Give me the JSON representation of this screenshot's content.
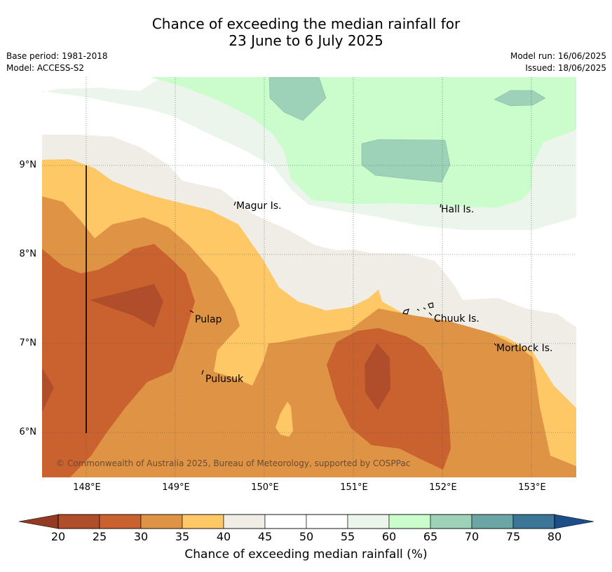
{
  "title_line1": "Chance of exceeding the median rainfall for",
  "title_line2": "23 June to 6 July 2025",
  "base_period": "Base period: 1981-2018",
  "model": "Model: ACCESS-S2",
  "model_run": "Model run: 16/06/2025",
  "issued": "Issued: 18/06/2025",
  "copyright": "© Commonwealth of Australia 2025, Bureau of Meteorology, supported by COSPPac",
  "x_ticks": [
    "148°E",
    "149°E",
    "150°E",
    "151°E",
    "152°E",
    "153°E"
  ],
  "y_ticks": [
    "9°N",
    "8°N",
    "7°N",
    "6°N"
  ],
  "places": [
    {
      "name": "Magur Is."
    },
    {
      "name": "Hall Is."
    },
    {
      "name": "Pulap"
    },
    {
      "name": "Chuuk Is."
    },
    {
      "name": "Mortlock Is."
    },
    {
      "name": "Pulusuk"
    }
  ],
  "colorbar": {
    "label": "Chance of exceeding median rainfall (%)",
    "ticks": [
      "20",
      "25",
      "30",
      "35",
      "40",
      "45",
      "50",
      "55",
      "60",
      "65",
      "70",
      "75",
      "80"
    ],
    "colors": [
      "#b04e2b",
      "#c9622f",
      "#df9445",
      "#fdc865",
      "#f0ece6",
      "#ffffff",
      "#ffffff",
      "#ebf5eb",
      "#cbfccc",
      "#9dd1b8",
      "#6ba5a4",
      "#3b7598"
    ],
    "under_color": "#943a22",
    "over_color": "#1c4f8a"
  },
  "map": {
    "lon_range": [
      "147.5°E",
      "153.5°E"
    ],
    "lat_range": [
      "5.5°N",
      "9.9°N"
    ],
    "gridlines": true
  }
}
